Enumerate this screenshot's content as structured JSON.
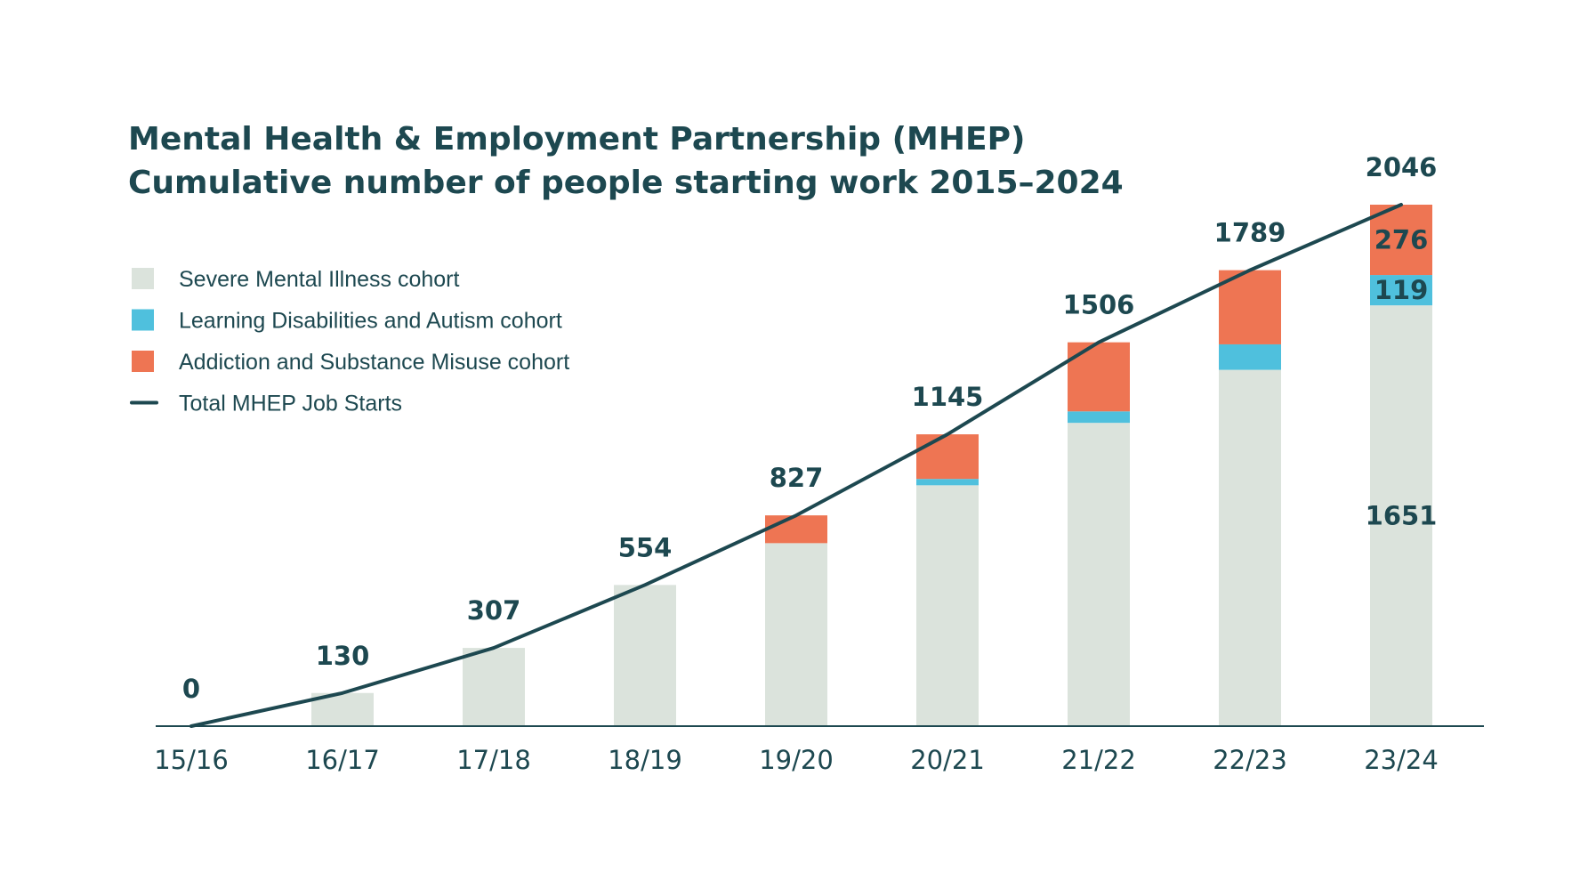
{
  "chart_data": {
    "type": "bar",
    "title_lines": [
      "Mental Health & Employment Partnership (MHEP)",
      "Cumulative number of people starting work 2015–2024"
    ],
    "categories": [
      "15/16",
      "16/17",
      "17/18",
      "18/19",
      "19/20",
      "20/21",
      "21/22",
      "22/23",
      "23/24"
    ],
    "series": [
      {
        "name": "Severe Mental Illness cohort",
        "kind": "stacked-bar",
        "color": "#dbe3dc",
        "values": [
          0,
          130,
          307,
          554,
          718,
          945,
          1190,
          1398,
          1651
        ]
      },
      {
        "name": "Learning Disabilities and Autism cohort",
        "kind": "stacked-bar",
        "color": "#4fc0dd",
        "values": [
          0,
          0,
          0,
          0,
          0,
          25,
          45,
          100,
          119
        ]
      },
      {
        "name": "Addiction and Substance Misuse cohort",
        "kind": "stacked-bar",
        "color": "#ee7553",
        "values": [
          0,
          0,
          0,
          0,
          109,
          175,
          271,
          291,
          276
        ]
      },
      {
        "name": "Total MHEP Job Starts",
        "kind": "line",
        "color": "#1d4850",
        "values": [
          0,
          130,
          307,
          554,
          827,
          1145,
          1506,
          1789,
          2046
        ]
      }
    ],
    "total_labels": [
      "0",
      "130",
      "307",
      "554",
      "827",
      "1145",
      "1506",
      "1789",
      "2046"
    ],
    "segment_labels": [
      {
        "category": "23/24",
        "series": "Severe Mental Illness cohort",
        "text": "1651"
      },
      {
        "category": "23/24",
        "series": "Learning Disabilities and Autism cohort",
        "text": "119"
      },
      {
        "category": "23/24",
        "series": "Addiction and Substance Misuse cohort",
        "text": "276"
      }
    ],
    "ylim": [
      0,
      2046
    ],
    "grid": false,
    "legend_position": "top-left",
    "axis_color": "#1d4850"
  }
}
